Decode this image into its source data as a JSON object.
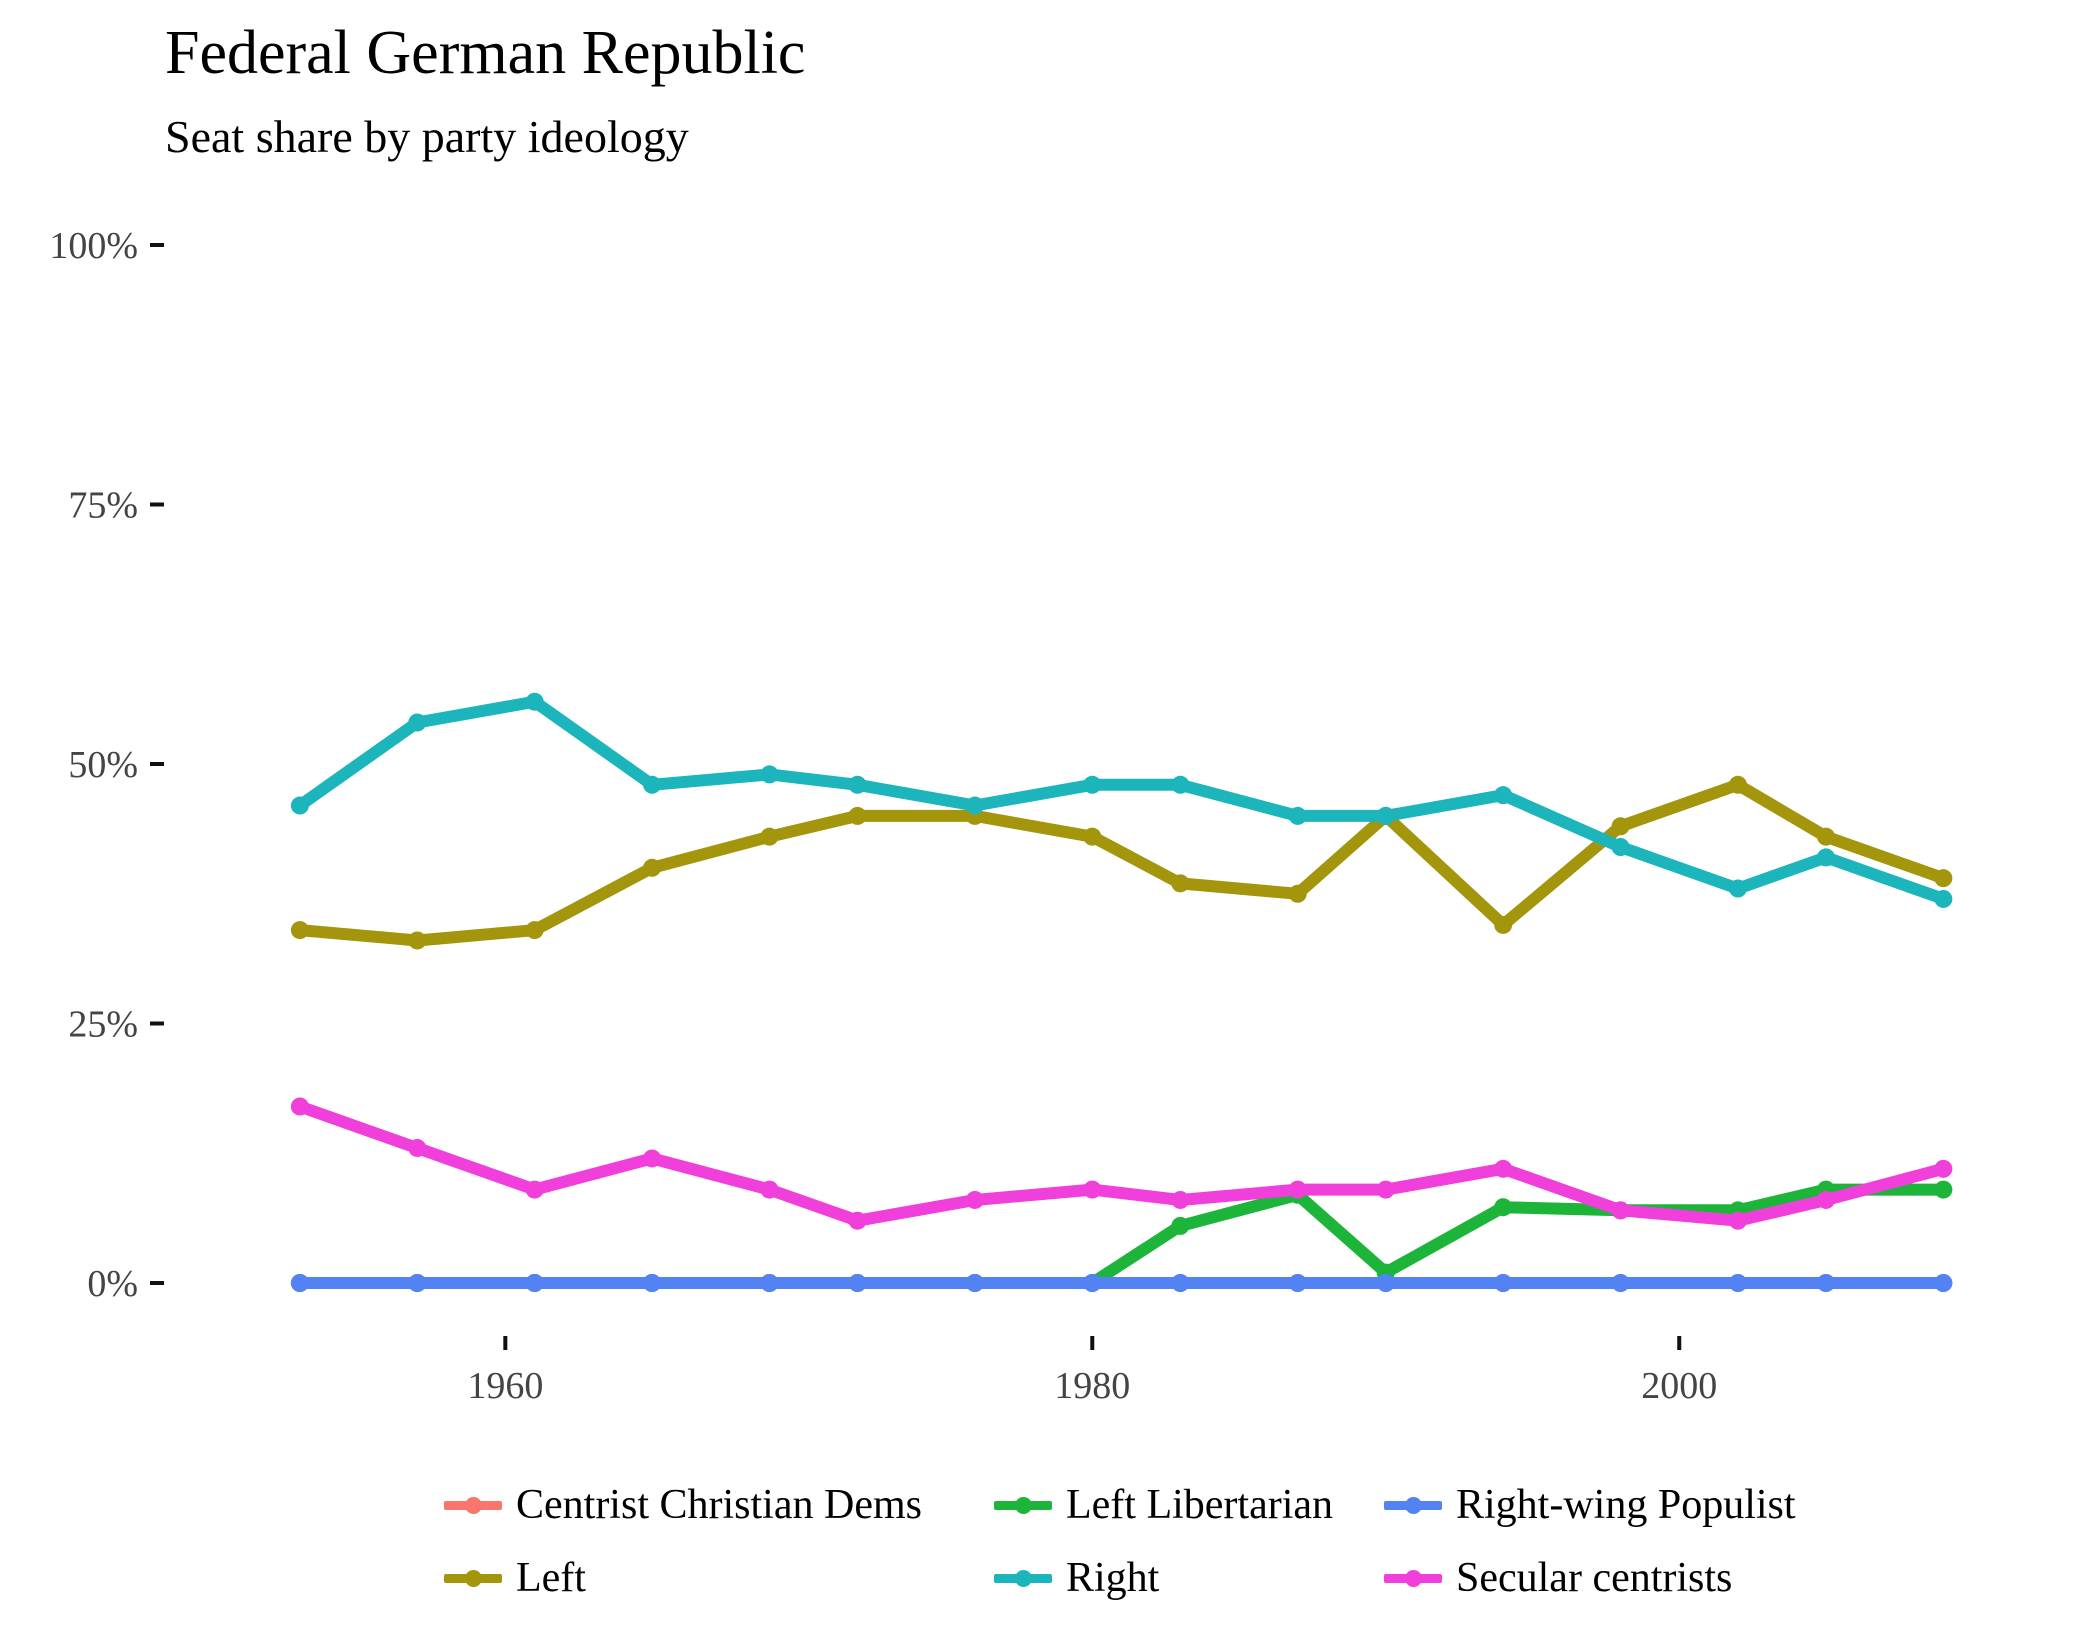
{
  "chart_data": {
    "type": "line",
    "title": "Federal German Republic",
    "subtitle": "Seat share by party ideology",
    "xlabel": "",
    "ylabel": "",
    "xlim": [
      1951.3,
      2011.1
    ],
    "ylim": [
      -5,
      100
    ],
    "x_ticks": [
      1960,
      1980,
      2000
    ],
    "x_tick_labels": [
      "1960",
      "1980",
      "2000"
    ],
    "y_ticks": [
      0,
      25,
      50,
      75,
      100
    ],
    "y_tick_labels": [
      "0%",
      "25%",
      "50%",
      "75%",
      "100%"
    ],
    "grid": false,
    "legend_position": "bottom",
    "x": [
      1953,
      1957,
      1961,
      1965,
      1969,
      1972,
      1976,
      1980,
      1983,
      1987,
      1990,
      1994,
      1998,
      2002,
      2005,
      2009
    ],
    "series": [
      {
        "name": "Centrist Christian Dems",
        "color": "#F8766D",
        "values": [
          0,
          0,
          0,
          0,
          0,
          0,
          0,
          0,
          0,
          0,
          0,
          0,
          0,
          0,
          0,
          0
        ]
      },
      {
        "name": "Left",
        "color": "#A3950C",
        "values": [
          34,
          33,
          34,
          40,
          43,
          45,
          45,
          43,
          38.5,
          37.5,
          45,
          34.5,
          44,
          48,
          43,
          39
        ]
      },
      {
        "name": "Left Libertarian",
        "color": "#1CB53A",
        "values": [
          0,
          0,
          0,
          0,
          0,
          0,
          0,
          0,
          5.5,
          8.5,
          1,
          7.3,
          7,
          7,
          9,
          9
        ]
      },
      {
        "name": "Right",
        "color": "#1CB5BB",
        "values": [
          46,
          54,
          56,
          48,
          49,
          48,
          46,
          48,
          48,
          45,
          45,
          47,
          42,
          38,
          41,
          37
        ]
      },
      {
        "name": "Right-wing Populist",
        "color": "#5383F2",
        "values": [
          0,
          0,
          0,
          0,
          0,
          0,
          0,
          0,
          0,
          0,
          0,
          0,
          0,
          0,
          0,
          0
        ]
      },
      {
        "name": "Secular centrists",
        "color": "#F03FDB",
        "values": [
          17,
          13,
          9,
          12,
          9,
          6,
          8,
          9,
          8,
          9,
          9,
          11,
          7,
          6,
          8,
          11
        ]
      }
    ]
  }
}
